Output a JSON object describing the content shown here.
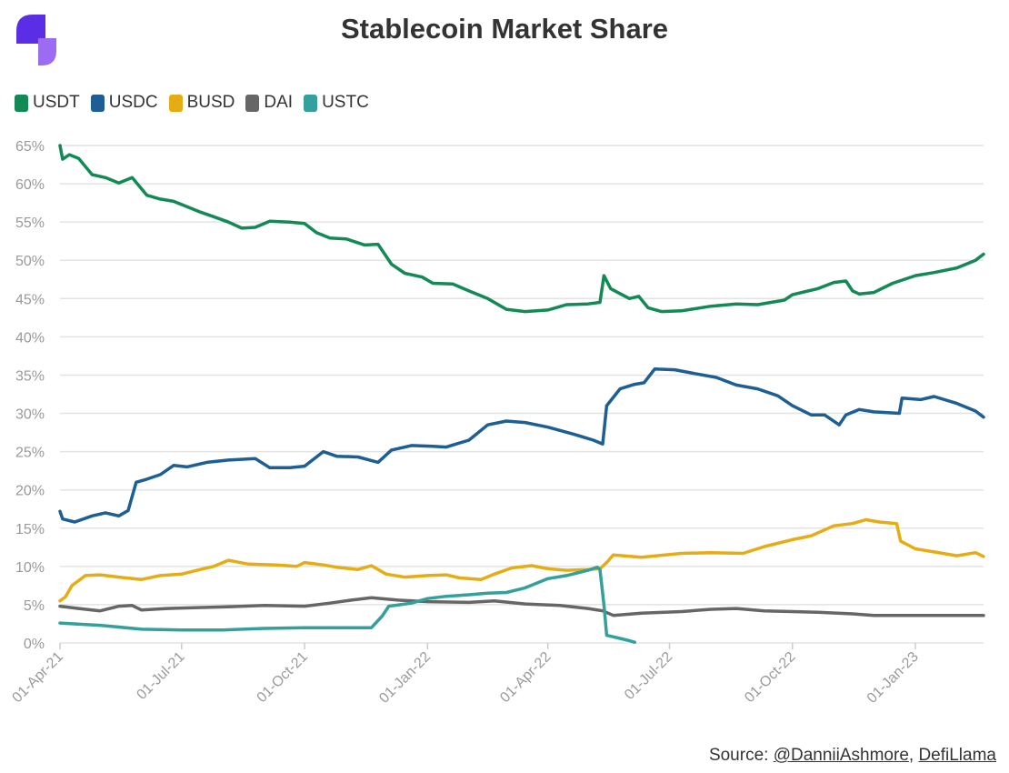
{
  "logo": {
    "icon": "brand-logo-icon",
    "colors": [
      "#5b2ee6",
      "#9b6cf2"
    ]
  },
  "title": "Stablecoin Market Share",
  "source": {
    "prefix": "Source: ",
    "author": "@DanniiAshmore",
    "separator": ", ",
    "site": "DefiLlama"
  },
  "chart_data": {
    "type": "line",
    "title": "Stablecoin Market Share",
    "xlabel": "",
    "ylabel": "",
    "x_ticks": [
      "01-Apr-21",
      "01-Jul-21",
      "01-Oct-21",
      "01-Jan-22",
      "01-Apr-22",
      "01-Jul-22",
      "01-Oct-22",
      "01-Jan-23"
    ],
    "y_ticks": [
      "0%",
      "5%",
      "10%",
      "15%",
      "20%",
      "25%",
      "30%",
      "35%",
      "40%",
      "45%",
      "50%",
      "55%",
      "60%",
      "65%"
    ],
    "xlim": [
      "2021-04-01",
      "2023-02-21"
    ],
    "ylim": [
      0,
      65
    ],
    "grid": true,
    "legend_position": "top-left",
    "series": [
      {
        "name": "USDT",
        "color": "#138a56",
        "points": [
          [
            "2021-04-01",
            65.0
          ],
          [
            "2021-04-03",
            63.2
          ],
          [
            "2021-04-08",
            63.8
          ],
          [
            "2021-04-15",
            63.3
          ],
          [
            "2021-04-25",
            61.2
          ],
          [
            "2021-05-05",
            60.8
          ],
          [
            "2021-05-15",
            60.1
          ],
          [
            "2021-05-25",
            60.8
          ],
          [
            "2021-06-05",
            58.5
          ],
          [
            "2021-06-15",
            58.0
          ],
          [
            "2021-06-25",
            57.7
          ],
          [
            "2021-07-05",
            57.0
          ],
          [
            "2021-07-15",
            56.3
          ],
          [
            "2021-07-25",
            55.7
          ],
          [
            "2021-08-05",
            55.0
          ],
          [
            "2021-08-15",
            54.2
          ],
          [
            "2021-08-25",
            54.3
          ],
          [
            "2021-09-05",
            55.1
          ],
          [
            "2021-09-20",
            55.0
          ],
          [
            "2021-10-01",
            54.8
          ],
          [
            "2021-10-10",
            53.6
          ],
          [
            "2021-10-20",
            52.9
          ],
          [
            "2021-11-01",
            52.8
          ],
          [
            "2021-11-15",
            52.0
          ],
          [
            "2021-11-25",
            52.1
          ],
          [
            "2021-12-05",
            49.5
          ],
          [
            "2021-12-15",
            48.3
          ],
          [
            "2021-12-28",
            47.8
          ],
          [
            "2022-01-05",
            47.0
          ],
          [
            "2022-01-20",
            46.9
          ],
          [
            "2022-02-01",
            46.0
          ],
          [
            "2022-02-15",
            45.0
          ],
          [
            "2022-03-01",
            43.6
          ],
          [
            "2022-03-15",
            43.3
          ],
          [
            "2022-04-01",
            43.5
          ],
          [
            "2022-04-15",
            44.2
          ],
          [
            "2022-05-01",
            44.3
          ],
          [
            "2022-05-10",
            44.5
          ],
          [
            "2022-05-13",
            48.0
          ],
          [
            "2022-05-18",
            46.3
          ],
          [
            "2022-06-01",
            45.0
          ],
          [
            "2022-06-08",
            45.3
          ],
          [
            "2022-06-15",
            43.8
          ],
          [
            "2022-06-25",
            43.3
          ],
          [
            "2022-07-10",
            43.4
          ],
          [
            "2022-08-01",
            44.0
          ],
          [
            "2022-08-20",
            44.3
          ],
          [
            "2022-09-05",
            44.2
          ],
          [
            "2022-09-25",
            44.8
          ],
          [
            "2022-10-01",
            45.5
          ],
          [
            "2022-10-20",
            46.3
          ],
          [
            "2022-11-01",
            47.1
          ],
          [
            "2022-11-10",
            47.3
          ],
          [
            "2022-11-15",
            46.0
          ],
          [
            "2022-11-20",
            45.6
          ],
          [
            "2022-12-01",
            45.8
          ],
          [
            "2022-12-15",
            47.0
          ],
          [
            "2023-01-01",
            48.0
          ],
          [
            "2023-01-15",
            48.4
          ],
          [
            "2023-02-01",
            49.0
          ],
          [
            "2023-02-15",
            50.0
          ],
          [
            "2023-02-21",
            50.8
          ]
        ]
      },
      {
        "name": "USDC",
        "color": "#1d5f94",
        "points": [
          [
            "2021-04-01",
            17.2
          ],
          [
            "2021-04-03",
            16.2
          ],
          [
            "2021-04-12",
            15.8
          ],
          [
            "2021-04-25",
            16.6
          ],
          [
            "2021-05-05",
            17.0
          ],
          [
            "2021-05-15",
            16.6
          ],
          [
            "2021-05-22",
            17.3
          ],
          [
            "2021-05-28",
            21.0
          ],
          [
            "2021-06-05",
            21.4
          ],
          [
            "2021-06-15",
            22.0
          ],
          [
            "2021-06-25",
            23.2
          ],
          [
            "2021-07-05",
            23.0
          ],
          [
            "2021-07-20",
            23.6
          ],
          [
            "2021-08-05",
            23.9
          ],
          [
            "2021-08-25",
            24.1
          ],
          [
            "2021-09-05",
            22.9
          ],
          [
            "2021-09-20",
            22.9
          ],
          [
            "2021-10-01",
            23.1
          ],
          [
            "2021-10-15",
            25.0
          ],
          [
            "2021-10-25",
            24.4
          ],
          [
            "2021-11-10",
            24.3
          ],
          [
            "2021-11-25",
            23.6
          ],
          [
            "2021-12-05",
            25.2
          ],
          [
            "2021-12-20",
            25.8
          ],
          [
            "2022-01-05",
            25.7
          ],
          [
            "2022-01-15",
            25.6
          ],
          [
            "2022-02-01",
            26.5
          ],
          [
            "2022-02-15",
            28.5
          ],
          [
            "2022-03-01",
            29.0
          ],
          [
            "2022-03-15",
            28.8
          ],
          [
            "2022-04-01",
            28.2
          ],
          [
            "2022-04-20",
            27.3
          ],
          [
            "2022-05-05",
            26.5
          ],
          [
            "2022-05-12",
            26.0
          ],
          [
            "2022-05-15",
            31.0
          ],
          [
            "2022-05-25",
            33.2
          ],
          [
            "2022-06-05",
            33.8
          ],
          [
            "2022-06-12",
            34.0
          ],
          [
            "2022-06-20",
            35.8
          ],
          [
            "2022-07-05",
            35.7
          ],
          [
            "2022-07-20",
            35.2
          ],
          [
            "2022-08-05",
            34.7
          ],
          [
            "2022-08-20",
            33.7
          ],
          [
            "2022-09-05",
            33.2
          ],
          [
            "2022-09-20",
            32.3
          ],
          [
            "2022-10-01",
            31.0
          ],
          [
            "2022-10-15",
            29.8
          ],
          [
            "2022-10-25",
            29.8
          ],
          [
            "2022-11-05",
            28.5
          ],
          [
            "2022-11-10",
            29.8
          ],
          [
            "2022-11-20",
            30.5
          ],
          [
            "2022-12-01",
            30.2
          ],
          [
            "2022-12-20",
            30.0
          ],
          [
            "2022-12-22",
            32.0
          ],
          [
            "2023-01-05",
            31.8
          ],
          [
            "2023-01-15",
            32.2
          ],
          [
            "2023-02-01",
            31.3
          ],
          [
            "2023-02-15",
            30.3
          ],
          [
            "2023-02-21",
            29.5
          ]
        ]
      },
      {
        "name": "BUSD",
        "color": "#e5ac13",
        "points": [
          [
            "2021-04-01",
            5.5
          ],
          [
            "2021-04-05",
            6.0
          ],
          [
            "2021-04-10",
            7.5
          ],
          [
            "2021-04-20",
            8.8
          ],
          [
            "2021-05-01",
            8.9
          ],
          [
            "2021-05-15",
            8.6
          ],
          [
            "2021-06-01",
            8.3
          ],
          [
            "2021-06-15",
            8.8
          ],
          [
            "2021-07-01",
            9.0
          ],
          [
            "2021-07-15",
            9.6
          ],
          [
            "2021-07-25",
            10.0
          ],
          [
            "2021-08-05",
            10.8
          ],
          [
            "2021-08-20",
            10.3
          ],
          [
            "2021-09-10",
            10.2
          ],
          [
            "2021-09-25",
            10.0
          ],
          [
            "2021-10-01",
            10.5
          ],
          [
            "2021-10-15",
            10.2
          ],
          [
            "2021-10-25",
            9.9
          ],
          [
            "2021-11-10",
            9.6
          ],
          [
            "2021-11-20",
            10.1
          ],
          [
            "2021-12-01",
            9.0
          ],
          [
            "2021-12-15",
            8.6
          ],
          [
            "2022-01-01",
            8.8
          ],
          [
            "2022-01-15",
            8.9
          ],
          [
            "2022-01-25",
            8.5
          ],
          [
            "2022-02-10",
            8.3
          ],
          [
            "2022-02-20",
            9.0
          ],
          [
            "2022-03-05",
            9.8
          ],
          [
            "2022-03-20",
            10.1
          ],
          [
            "2022-04-01",
            9.7
          ],
          [
            "2022-04-15",
            9.5
          ],
          [
            "2022-05-01",
            9.6
          ],
          [
            "2022-05-10",
            9.7
          ],
          [
            "2022-05-15",
            10.5
          ],
          [
            "2022-05-20",
            11.5
          ],
          [
            "2022-06-10",
            11.2
          ],
          [
            "2022-07-10",
            11.7
          ],
          [
            "2022-08-01",
            11.8
          ],
          [
            "2022-08-25",
            11.7
          ],
          [
            "2022-09-10",
            12.6
          ],
          [
            "2022-10-01",
            13.5
          ],
          [
            "2022-10-15",
            14.0
          ],
          [
            "2022-11-01",
            15.3
          ],
          [
            "2022-11-15",
            15.6
          ],
          [
            "2022-11-25",
            16.1
          ],
          [
            "2022-12-05",
            15.8
          ],
          [
            "2022-12-18",
            15.6
          ],
          [
            "2022-12-21",
            13.3
          ],
          [
            "2023-01-01",
            12.3
          ],
          [
            "2023-01-15",
            11.9
          ],
          [
            "2023-02-01",
            11.4
          ],
          [
            "2023-02-15",
            11.8
          ],
          [
            "2023-02-21",
            11.3
          ]
        ]
      },
      {
        "name": "DAI",
        "color": "#666666",
        "points": [
          [
            "2021-04-01",
            4.8
          ],
          [
            "2021-04-15",
            4.5
          ],
          [
            "2021-05-01",
            4.2
          ],
          [
            "2021-05-15",
            4.8
          ],
          [
            "2021-05-25",
            4.9
          ],
          [
            "2021-06-01",
            4.3
          ],
          [
            "2021-06-20",
            4.5
          ],
          [
            "2021-07-10",
            4.6
          ],
          [
            "2021-08-01",
            4.7
          ],
          [
            "2021-09-01",
            4.9
          ],
          [
            "2021-10-01",
            4.8
          ],
          [
            "2021-10-20",
            5.2
          ],
          [
            "2021-11-05",
            5.6
          ],
          [
            "2021-11-20",
            5.9
          ],
          [
            "2021-12-10",
            5.6
          ],
          [
            "2022-01-01",
            5.4
          ],
          [
            "2022-02-01",
            5.3
          ],
          [
            "2022-02-20",
            5.5
          ],
          [
            "2022-03-15",
            5.1
          ],
          [
            "2022-04-10",
            4.9
          ],
          [
            "2022-05-01",
            4.5
          ],
          [
            "2022-05-12",
            4.2
          ],
          [
            "2022-05-20",
            3.6
          ],
          [
            "2022-06-10",
            3.9
          ],
          [
            "2022-07-10",
            4.1
          ],
          [
            "2022-08-01",
            4.4
          ],
          [
            "2022-08-20",
            4.5
          ],
          [
            "2022-09-10",
            4.2
          ],
          [
            "2022-10-01",
            4.1
          ],
          [
            "2022-10-20",
            4.0
          ],
          [
            "2022-11-15",
            3.8
          ],
          [
            "2022-12-01",
            3.6
          ],
          [
            "2023-01-01",
            3.6
          ],
          [
            "2023-02-21",
            3.6
          ]
        ]
      },
      {
        "name": "USTC",
        "color": "#33a09c",
        "points": [
          [
            "2021-04-01",
            2.6
          ],
          [
            "2021-05-01",
            2.3
          ],
          [
            "2021-06-01",
            1.8
          ],
          [
            "2021-07-01",
            1.7
          ],
          [
            "2021-08-01",
            1.7
          ],
          [
            "2021-09-01",
            1.9
          ],
          [
            "2021-10-01",
            2.0
          ],
          [
            "2021-11-01",
            2.0
          ],
          [
            "2021-11-20",
            2.0
          ],
          [
            "2021-11-28",
            3.5
          ],
          [
            "2021-12-03",
            4.8
          ],
          [
            "2021-12-20",
            5.2
          ],
          [
            "2022-01-01",
            5.8
          ],
          [
            "2022-01-15",
            6.1
          ],
          [
            "2022-02-01",
            6.3
          ],
          [
            "2022-02-15",
            6.5
          ],
          [
            "2022-03-01",
            6.6
          ],
          [
            "2022-03-15",
            7.2
          ],
          [
            "2022-04-01",
            8.4
          ],
          [
            "2022-04-15",
            8.8
          ],
          [
            "2022-05-01",
            9.5
          ],
          [
            "2022-05-08",
            9.9
          ],
          [
            "2022-05-10",
            9.6
          ],
          [
            "2022-05-13",
            5.0
          ],
          [
            "2022-05-15",
            1.0
          ],
          [
            "2022-05-25",
            0.6
          ],
          [
            "2022-06-01",
            0.3
          ],
          [
            "2022-06-05",
            0.1
          ]
        ]
      }
    ]
  }
}
